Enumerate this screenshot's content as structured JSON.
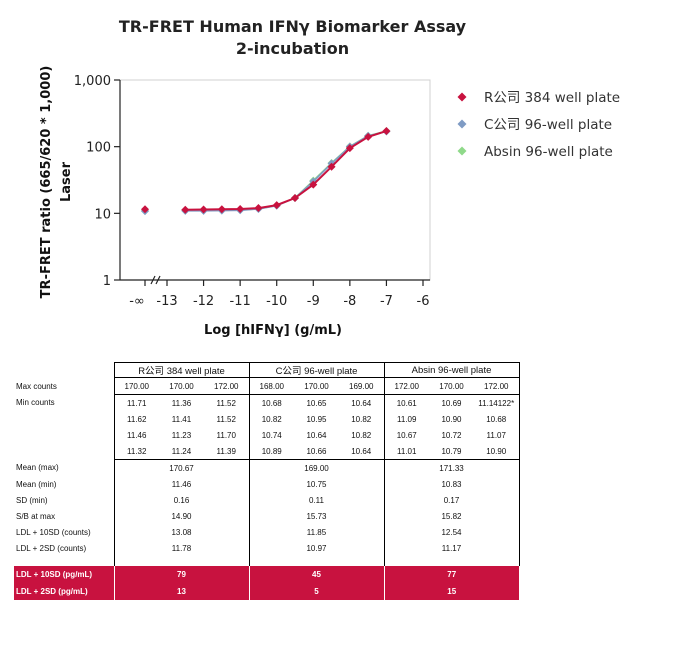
{
  "chart_data": {
    "type": "line",
    "title_line1": "TR-FRET Human IFNγ Biomarker Assay",
    "title_line2": "2-incubation",
    "xlabel": "Log [hIFNγ] (g/mL)",
    "ylabel_line1": "TR-FRET ratio (665/620 * 1,000)",
    "ylabel_line2": "Laser",
    "yscale": "log",
    "ylim": [
      1,
      1000
    ],
    "yticks": [
      1,
      10,
      100,
      1000
    ],
    "ytick_labels": [
      "1",
      "10",
      "100",
      "1,000"
    ],
    "xlim": [
      -13,
      -6
    ],
    "xticks": [
      -13,
      -12,
      -11,
      -10,
      -9,
      -8,
      -7,
      -6
    ],
    "xtick_labels": [
      "-13",
      "-12",
      "-11",
      "-10",
      "-9",
      "-8",
      "-7",
      "-6"
    ],
    "x_zero_label": "-∞",
    "legend_position": "right",
    "series": [
      {
        "name": "R公司 384 well plate",
        "color": "#c8123f",
        "zero_value": 11.5,
        "x": [
          -12.5,
          -12,
          -11.5,
          -11,
          -10.5,
          -10,
          -9.5,
          -9,
          -8.5,
          -8,
          -7.5,
          -7
        ],
        "values": [
          11.3,
          11.4,
          11.5,
          11.6,
          12,
          13.3,
          17,
          27,
          50,
          95,
          140,
          172
        ]
      },
      {
        "name": "C公司 96-well plate",
        "color": "#7f9bc4",
        "zero_value": 10.8,
        "x": [
          -12.5,
          -12,
          -11.5,
          -11,
          -10.5,
          -10,
          -9.5,
          -9,
          -8.5,
          -8,
          -7.5,
          -7
        ],
        "values": [
          10.9,
          10.9,
          11.0,
          11.1,
          11.6,
          13.0,
          17,
          30,
          56,
          100,
          145,
          169
        ]
      },
      {
        "name": "Absin 96-well plate",
        "color": "#8fd98a",
        "zero_value": 10.9,
        "x": [
          -12.5,
          -12,
          -11.5,
          -11,
          -10.5,
          -10,
          -9.5,
          -9,
          -8.5,
          -8,
          -7.5,
          -7
        ],
        "values": [
          11.0,
          11.0,
          11.1,
          11.2,
          11.7,
          13.1,
          17,
          31,
          57,
          101,
          146,
          171
        ]
      }
    ]
  },
  "table": {
    "groups": [
      "R公司 384 well plate",
      "C公司 96-well plate",
      "Absin 96-well plate"
    ],
    "rows": [
      {
        "label": "Max counts",
        "cells": [
          "170.00",
          "170.00",
          "172.00",
          "168.00",
          "170.00",
          "169.00",
          "172.00",
          "170.00",
          "172.00"
        ]
      },
      {
        "label": "Min counts",
        "cells": [
          "11.71",
          "11.36",
          "11.52",
          "10.68",
          "10.65",
          "10.64",
          "10.61",
          "10.69",
          "11.14122*"
        ]
      },
      {
        "label": "",
        "cells": [
          "11.62",
          "11.41",
          "11.52",
          "10.82",
          "10.95",
          "10.82",
          "11.09",
          "10.90",
          "10.68"
        ]
      },
      {
        "label": "",
        "cells": [
          "11.46",
          "11.23",
          "11.70",
          "10.74",
          "10.64",
          "10.82",
          "10.67",
          "10.72",
          "11.07"
        ]
      },
      {
        "label": "",
        "cells": [
          "11.32",
          "11.24",
          "11.39",
          "10.89",
          "10.66",
          "10.64",
          "11.01",
          "10.79",
          "10.90"
        ]
      }
    ],
    "summary": [
      {
        "label": "Mean (max)",
        "cells": [
          "170.67",
          "169.00",
          "171.33"
        ]
      },
      {
        "label": "Mean (min)",
        "cells": [
          "11.46",
          "10.75",
          "10.83"
        ]
      },
      {
        "label": "SD (min)",
        "cells": [
          "0.16",
          "0.11",
          "0.17"
        ]
      },
      {
        "label": "S/B at max",
        "cells": [
          "14.90",
          "15.73",
          "15.82"
        ]
      },
      {
        "label": "LDL + 10SD (counts)",
        "cells": [
          "13.08",
          "11.85",
          "12.54"
        ]
      },
      {
        "label": "LDL + 2SD (counts)",
        "cells": [
          "11.78",
          "10.97",
          "11.17"
        ]
      }
    ],
    "highlight": [
      {
        "label": "LDL + 10SD (pg/mL)",
        "cells": [
          "79",
          "45",
          "77"
        ]
      },
      {
        "label": "LDL + 2SD (pg/mL)",
        "cells": [
          "13",
          "5",
          "15"
        ]
      }
    ]
  }
}
